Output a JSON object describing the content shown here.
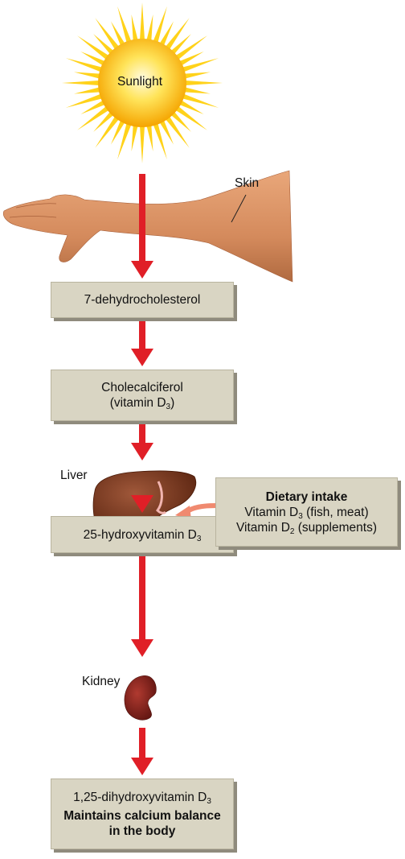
{
  "sun": {
    "label": "Sunlight"
  },
  "skin": {
    "label": "Skin"
  },
  "liver": {
    "label": "Liver"
  },
  "kidney": {
    "label": "Kidney"
  },
  "boxes": {
    "dehydro": {
      "text": "7-dehydrocholesterol"
    },
    "chole": {
      "line1": "Cholecalciferol",
      "line2_pre": "(vitamin D",
      "line2_sub": "3",
      "line2_post": ")"
    },
    "hydroxy": {
      "pre": "25-hydroxyvitamin D",
      "sub": "3"
    },
    "dihydroxy": {
      "pre": "1,25-dihydroxyvitamin D",
      "sub": "3",
      "bold1": "Maintains calcium balance",
      "bold2": "in the body"
    }
  },
  "dietary": {
    "title": "Dietary intake",
    "d3_pre": "Vitamin D",
    "d3_sub": "3",
    "d3_post": " (fish, meat)",
    "d2_pre": "Vitamin D",
    "d2_sub": "2",
    "d2_post": " (supplements)"
  },
  "colors": {
    "arrow": "#e01f27",
    "box": "#d9d5c3",
    "liver": "#7a3a1e",
    "kidney": "#8a1f1a",
    "sun": "#ffd21a"
  }
}
